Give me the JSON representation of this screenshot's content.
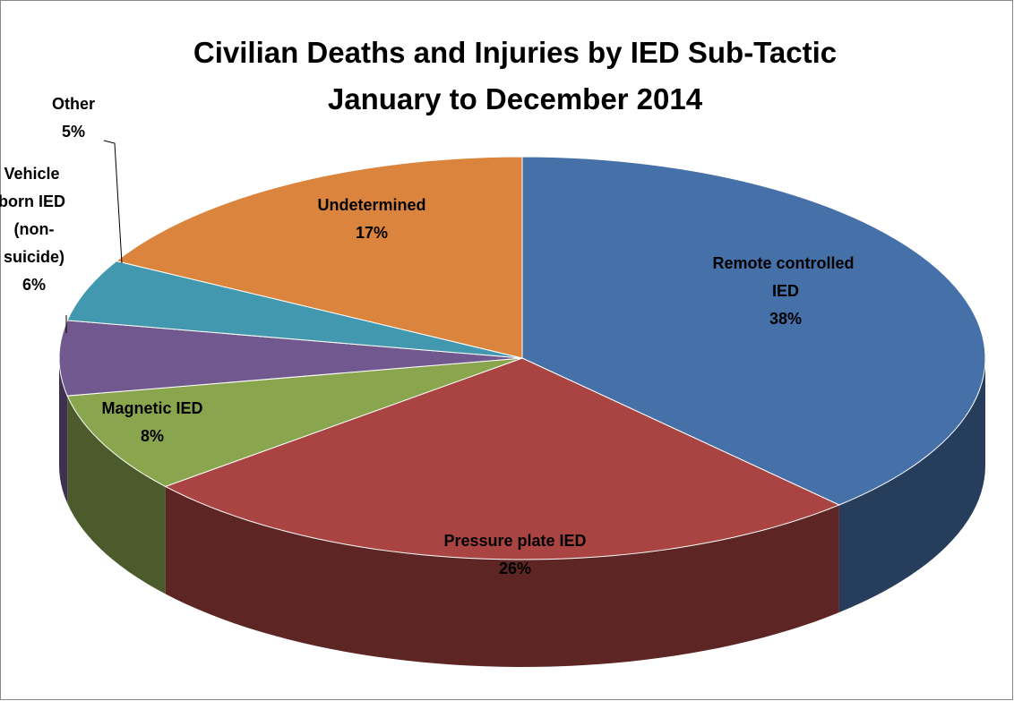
{
  "chart_data": {
    "type": "pie",
    "title": "Civilian Deaths and Injuries by IED Sub-Tactic",
    "subtitle": "January to December 2014",
    "categories": [
      "Remote controlled IED",
      "Pressure plate IED",
      "Magnetic IED",
      "Vehicle born IED (non-suicide)",
      "Other",
      "Undetermined"
    ],
    "values": [
      38,
      26,
      8,
      6,
      5,
      17
    ],
    "value_labels": [
      "38%",
      "26%",
      "8%",
      "6%",
      "5%",
      "17%"
    ],
    "colors": [
      "#4570a8",
      "#a94442",
      "#89a54e",
      "#71588f",
      "#4198af",
      "#db843d"
    ]
  }
}
